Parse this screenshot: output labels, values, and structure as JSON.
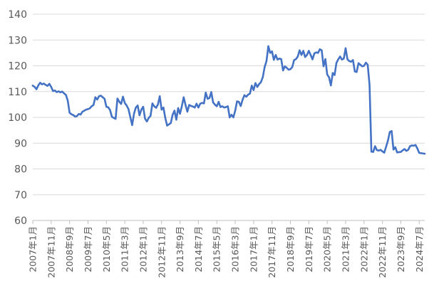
{
  "chart_data": {
    "type": "line",
    "title": "",
    "xlabel": "",
    "ylabel": "",
    "ylim": [
      60,
      140
    ],
    "yticks": [
      60,
      70,
      80,
      90,
      100,
      110,
      120,
      130,
      140
    ],
    "grid": "horizontal",
    "legend": "none",
    "line_color": "#4472C4",
    "grid_color": "#D9D9D9",
    "xticks": [
      {
        "date": "2007-01",
        "label": "2007年1月"
      },
      {
        "date": "2007-11",
        "label": "2007年11月"
      },
      {
        "date": "2008-09",
        "label": "2008年9月"
      },
      {
        "date": "2009-07",
        "label": "2009年7月"
      },
      {
        "date": "2010-05",
        "label": "2010年5月"
      },
      {
        "date": "2011-03",
        "label": "2011年3月"
      },
      {
        "date": "2012-01",
        "label": "2012年1月"
      },
      {
        "date": "2012-11",
        "label": "2012年11月"
      },
      {
        "date": "2013-09",
        "label": "2013年9月"
      },
      {
        "date": "2014-07",
        "label": "2014年7月"
      },
      {
        "date": "2015-05",
        "label": "2015年5月"
      },
      {
        "date": "2016-03",
        "label": "2016年3月"
      },
      {
        "date": "2017-01",
        "label": "2017年1月"
      },
      {
        "date": "2017-11",
        "label": "2017年11月"
      },
      {
        "date": "2018-09",
        "label": "2018年9月"
      },
      {
        "date": "2019-07",
        "label": "2019年7月"
      },
      {
        "date": "2020-05",
        "label": "2020年5月"
      },
      {
        "date": "2021-03",
        "label": "2021年3月"
      },
      {
        "date": "2022-01",
        "label": "2022年1月"
      },
      {
        "date": "2022-11",
        "label": "2022年11月"
      },
      {
        "date": "2023-09",
        "label": "2023年9月"
      },
      {
        "date": "2024-07",
        "label": "2024年7月"
      }
    ],
    "series": [
      {
        "points": [
          [
            "2007-01",
            112.3
          ],
          [
            "2007-02",
            111.8
          ],
          [
            "2007-03",
            110.9
          ],
          [
            "2007-04",
            112.4
          ],
          [
            "2007-05",
            113.4
          ],
          [
            "2007-06",
            112.8
          ],
          [
            "2007-07",
            113.1
          ],
          [
            "2007-08",
            112.6
          ],
          [
            "2007-09",
            112.2
          ],
          [
            "2007-10",
            113.0
          ],
          [
            "2007-11",
            111.8
          ],
          [
            "2007-12",
            110.2
          ],
          [
            "2008-01",
            110.4
          ],
          [
            "2008-02",
            109.8
          ],
          [
            "2008-03",
            110.1
          ],
          [
            "2008-04",
            109.7
          ],
          [
            "2008-05",
            110.0
          ],
          [
            "2008-06",
            109.3
          ],
          [
            "2008-07",
            108.7
          ],
          [
            "2008-08",
            106.5
          ],
          [
            "2008-09",
            101.8
          ],
          [
            "2008-10",
            101.2
          ],
          [
            "2008-11",
            100.9
          ],
          [
            "2008-12",
            100.3
          ],
          [
            "2009-01",
            100.5
          ],
          [
            "2009-02",
            101.3
          ],
          [
            "2009-03",
            101.1
          ],
          [
            "2009-04",
            102.2
          ],
          [
            "2009-05",
            102.6
          ],
          [
            "2009-06",
            103.0
          ],
          [
            "2009-07",
            103.2
          ],
          [
            "2009-08",
            103.5
          ],
          [
            "2009-09",
            104.3
          ],
          [
            "2009-10",
            104.8
          ],
          [
            "2009-11",
            107.8
          ],
          [
            "2009-12",
            106.9
          ],
          [
            "2010-01",
            108.2
          ],
          [
            "2010-02",
            108.4
          ],
          [
            "2010-03",
            107.8
          ],
          [
            "2010-04",
            107.2
          ],
          [
            "2010-05",
            104.1
          ],
          [
            "2010-06",
            103.9
          ],
          [
            "2010-07",
            102.8
          ],
          [
            "2010-08",
            100.2
          ],
          [
            "2010-09",
            99.8
          ],
          [
            "2010-10",
            99.4
          ],
          [
            "2010-11",
            107.3
          ],
          [
            "2010-12",
            106.1
          ],
          [
            "2011-01",
            105.2
          ],
          [
            "2011-02",
            108.0
          ],
          [
            "2011-03",
            105.6
          ],
          [
            "2011-04",
            104.6
          ],
          [
            "2011-05",
            103.2
          ],
          [
            "2011-06",
            100.1
          ],
          [
            "2011-07",
            97.0
          ],
          [
            "2011-08",
            101.4
          ],
          [
            "2011-09",
            103.8
          ],
          [
            "2011-10",
            104.6
          ],
          [
            "2011-11",
            100.8
          ],
          [
            "2011-12",
            103.0
          ],
          [
            "2012-01",
            104.1
          ],
          [
            "2012-02",
            99.5
          ],
          [
            "2012-03",
            98.4
          ],
          [
            "2012-04",
            99.8
          ],
          [
            "2012-05",
            100.6
          ],
          [
            "2012-06",
            105.4
          ],
          [
            "2012-07",
            104.3
          ],
          [
            "2012-08",
            103.7
          ],
          [
            "2012-09",
            105.0
          ],
          [
            "2012-10",
            108.2
          ],
          [
            "2012-11",
            103.0
          ],
          [
            "2012-12",
            103.8
          ],
          [
            "2013-01",
            99.8
          ],
          [
            "2013-02",
            96.8
          ],
          [
            "2013-03",
            97.3
          ],
          [
            "2013-04",
            97.8
          ],
          [
            "2013-05",
            101.0
          ],
          [
            "2013-06",
            102.6
          ],
          [
            "2013-07",
            99.1
          ],
          [
            "2013-08",
            103.6
          ],
          [
            "2013-09",
            101.4
          ],
          [
            "2013-10",
            104.3
          ],
          [
            "2013-11",
            107.8
          ],
          [
            "2013-12",
            104.8
          ],
          [
            "2014-01",
            102.2
          ],
          [
            "2014-02",
            104.8
          ],
          [
            "2014-03",
            104.4
          ],
          [
            "2014-04",
            104.2
          ],
          [
            "2014-05",
            103.8
          ],
          [
            "2014-06",
            105.3
          ],
          [
            "2014-07",
            103.8
          ],
          [
            "2014-08",
            105.3
          ],
          [
            "2014-09",
            105.6
          ],
          [
            "2014-10",
            105.4
          ],
          [
            "2014-11",
            109.6
          ],
          [
            "2014-12",
            107.2
          ],
          [
            "2015-01",
            107.5
          ],
          [
            "2015-02",
            109.8
          ],
          [
            "2015-03",
            105.8
          ],
          [
            "2015-04",
            104.9
          ],
          [
            "2015-05",
            104.3
          ],
          [
            "2015-06",
            106.0
          ],
          [
            "2015-07",
            104.0
          ],
          [
            "2015-08",
            104.3
          ],
          [
            "2015-09",
            103.8
          ],
          [
            "2015-10",
            104.0
          ],
          [
            "2015-11",
            104.3
          ],
          [
            "2015-12",
            100.0
          ],
          [
            "2016-01",
            101.0
          ],
          [
            "2016-02",
            100.0
          ],
          [
            "2016-03",
            102.6
          ],
          [
            "2016-04",
            106.2
          ],
          [
            "2016-05",
            106.0
          ],
          [
            "2016-06",
            104.4
          ],
          [
            "2016-07",
            106.8
          ],
          [
            "2016-08",
            108.6
          ],
          [
            "2016-09",
            108.0
          ],
          [
            "2016-10",
            108.8
          ],
          [
            "2016-11",
            109.2
          ],
          [
            "2016-12",
            112.3
          ],
          [
            "2017-01",
            110.6
          ],
          [
            "2017-02",
            113.3
          ],
          [
            "2017-03",
            111.8
          ],
          [
            "2017-04",
            112.9
          ],
          [
            "2017-05",
            113.7
          ],
          [
            "2017-06",
            115.6
          ],
          [
            "2017-07",
            119.5
          ],
          [
            "2017-08",
            121.8
          ],
          [
            "2017-09",
            127.6
          ],
          [
            "2017-10",
            125.0
          ],
          [
            "2017-11",
            125.6
          ],
          [
            "2017-12",
            122.3
          ],
          [
            "2018-01",
            124.2
          ],
          [
            "2018-02",
            122.4
          ],
          [
            "2018-03",
            122.8
          ],
          [
            "2018-04",
            122.6
          ],
          [
            "2018-05",
            118.2
          ],
          [
            "2018-06",
            119.8
          ],
          [
            "2018-07",
            119.2
          ],
          [
            "2018-08",
            118.5
          ],
          [
            "2018-09",
            118.7
          ],
          [
            "2018-10",
            119.5
          ],
          [
            "2018-11",
            122.2
          ],
          [
            "2018-12",
            122.6
          ],
          [
            "2019-01",
            123.6
          ],
          [
            "2019-02",
            126.0
          ],
          [
            "2019-03",
            124.2
          ],
          [
            "2019-04",
            125.8
          ],
          [
            "2019-05",
            123.4
          ],
          [
            "2019-06",
            124.2
          ],
          [
            "2019-07",
            125.8
          ],
          [
            "2019-08",
            124.2
          ],
          [
            "2019-09",
            122.5
          ],
          [
            "2019-10",
            124.8
          ],
          [
            "2019-11",
            125.2
          ],
          [
            "2019-12",
            125.0
          ],
          [
            "2020-01",
            126.4
          ],
          [
            "2020-02",
            126.0
          ],
          [
            "2020-03",
            119.8
          ],
          [
            "2020-04",
            122.6
          ],
          [
            "2020-05",
            116.6
          ],
          [
            "2020-06",
            115.5
          ],
          [
            "2020-07",
            112.4
          ],
          [
            "2020-08",
            117.2
          ],
          [
            "2020-09",
            116.4
          ],
          [
            "2020-10",
            121.1
          ],
          [
            "2020-11",
            122.5
          ],
          [
            "2020-12",
            123.6
          ],
          [
            "2021-01",
            122.4
          ],
          [
            "2021-02",
            122.8
          ],
          [
            "2021-03",
            126.8
          ],
          [
            "2021-04",
            122.5
          ],
          [
            "2021-05",
            121.8
          ],
          [
            "2021-06",
            121.6
          ],
          [
            "2021-07",
            122.2
          ],
          [
            "2021-08",
            117.8
          ],
          [
            "2021-09",
            117.6
          ],
          [
            "2021-10",
            121.0
          ],
          [
            "2021-11",
            120.4
          ],
          [
            "2021-12",
            119.8
          ],
          [
            "2022-01",
            120.0
          ],
          [
            "2022-02",
            121.2
          ],
          [
            "2022-03",
            120.4
          ],
          [
            "2022-04",
            112.6
          ],
          [
            "2022-05",
            86.7
          ],
          [
            "2022-06",
            86.6
          ],
          [
            "2022-07",
            88.8
          ],
          [
            "2022-08",
            87.3
          ],
          [
            "2022-09",
            87.1
          ],
          [
            "2022-10",
            87.4
          ],
          [
            "2022-11",
            86.8
          ],
          [
            "2022-12",
            86.3
          ],
          [
            "2023-01",
            88.6
          ],
          [
            "2023-02",
            91.0
          ],
          [
            "2023-03",
            94.3
          ],
          [
            "2023-04",
            94.7
          ],
          [
            "2023-05",
            87.5
          ],
          [
            "2023-06",
            88.4
          ],
          [
            "2023-07",
            86.4
          ],
          [
            "2023-08",
            86.5
          ],
          [
            "2023-09",
            86.6
          ],
          [
            "2023-10",
            87.2
          ],
          [
            "2023-11",
            87.7
          ],
          [
            "2023-12",
            87.0
          ],
          [
            "2024-01",
            87.4
          ],
          [
            "2024-02",
            88.8
          ],
          [
            "2024-03",
            89.1
          ],
          [
            "2024-04",
            89.0
          ],
          [
            "2024-05",
            89.3
          ],
          [
            "2024-06",
            87.9
          ],
          [
            "2024-07",
            86.2
          ],
          [
            "2024-08",
            86.1
          ],
          [
            "2024-09",
            86.0
          ],
          [
            "2024-10",
            85.9
          ]
        ]
      }
    ]
  }
}
